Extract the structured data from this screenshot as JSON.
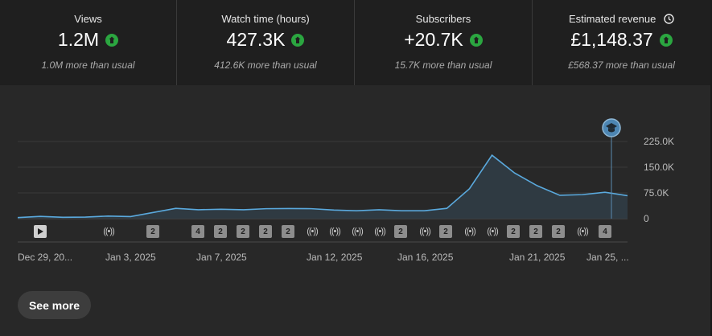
{
  "metrics": [
    {
      "label": "Views",
      "value": "1.2M",
      "sub": "1.0M more than usual"
    },
    {
      "label": "Watch time (hours)",
      "value": "427.3K",
      "sub": "412.6K more than usual"
    },
    {
      "label": "Subscribers",
      "value": "+20.7K",
      "sub": "15.7K more than usual"
    },
    {
      "label": "Estimated revenue",
      "value": "£1,148.37",
      "sub": "£568.37 more than usual"
    }
  ],
  "colors": {
    "accent_line": "#5aa9dd",
    "up_badge": "#2ba640",
    "annotation": "#5a8bb0"
  },
  "chart_data": {
    "type": "area",
    "y_ticks": [
      "225.0K",
      "150.0K",
      "75.0K",
      "0"
    ],
    "ylim": [
      0,
      225000
    ],
    "x_labels": [
      "Dec 29, 20...",
      "Jan 3, 2025",
      "Jan 7, 2025",
      "Jan 12, 2025",
      "Jan 16, 2025",
      "Jan 21, 2025",
      "Jan 25, ..."
    ],
    "values": [
      3000,
      6500,
      4000,
      4500,
      7500,
      6000,
      18000,
      30000,
      26000,
      27500,
      26000,
      29000,
      29500,
      29000,
      25000,
      23000,
      26000,
      23000,
      23000,
      30000,
      87000,
      185000,
      133000,
      96000,
      68000,
      70000,
      77000,
      67000
    ],
    "grid": true,
    "markers": [
      "play",
      "live",
      "2",
      "4",
      "2",
      "2",
      "2",
      "2",
      "live",
      "live",
      "live",
      "live",
      "2",
      "live",
      "2",
      "live",
      "live",
      "2",
      "2",
      "2",
      "live",
      "live",
      "4"
    ],
    "annotation_icon": "graduation-cap-icon"
  },
  "see_more_label": "See more"
}
